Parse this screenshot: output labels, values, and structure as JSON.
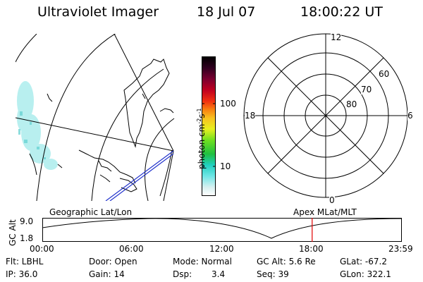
{
  "header": {
    "title": "Ultraviolet Imager",
    "date": "18 Jul 07",
    "time": "18:00:22 UT"
  },
  "colorbar": {
    "unit_main": "photon cm",
    "unit_sup1": "-2",
    "unit_s": "s",
    "unit_sup2": "-1",
    "ticks": [
      "100",
      "10"
    ]
  },
  "polar": {
    "hour_labels": {
      "top": "12",
      "left": "18",
      "right": "6",
      "bottom": "0"
    },
    "lat_labels": [
      "60",
      "70",
      "80"
    ]
  },
  "track": {
    "left_title": "Geographic Lat/Lon",
    "right_title": "Apex MLat/MLT",
    "y_label": "GC Alt",
    "y_ticks": [
      "9.0",
      "1.8"
    ],
    "x_ticks": [
      "00:00",
      "06:00",
      "12:00",
      "18:00",
      "23:59"
    ],
    "marker_time_hours": 18.0,
    "marker_color": "#e00000"
  },
  "info": {
    "flt": "Flt: LBHL",
    "ip": "IP: 36.0",
    "door": "Door: Open",
    "gain": "Gain: 14",
    "mode": "Mode: Normal",
    "dsp_label": "Dsp:",
    "dsp_value": "3.4",
    "gcalt": "GC Alt: 5.6 Re",
    "seq": "Seq: 39",
    "glat": "GLat: -67.2",
    "glon": "GLon: 322.1"
  },
  "colors": {
    "aurora": "#7fe3e3",
    "orbit_line": "#2233cc"
  }
}
